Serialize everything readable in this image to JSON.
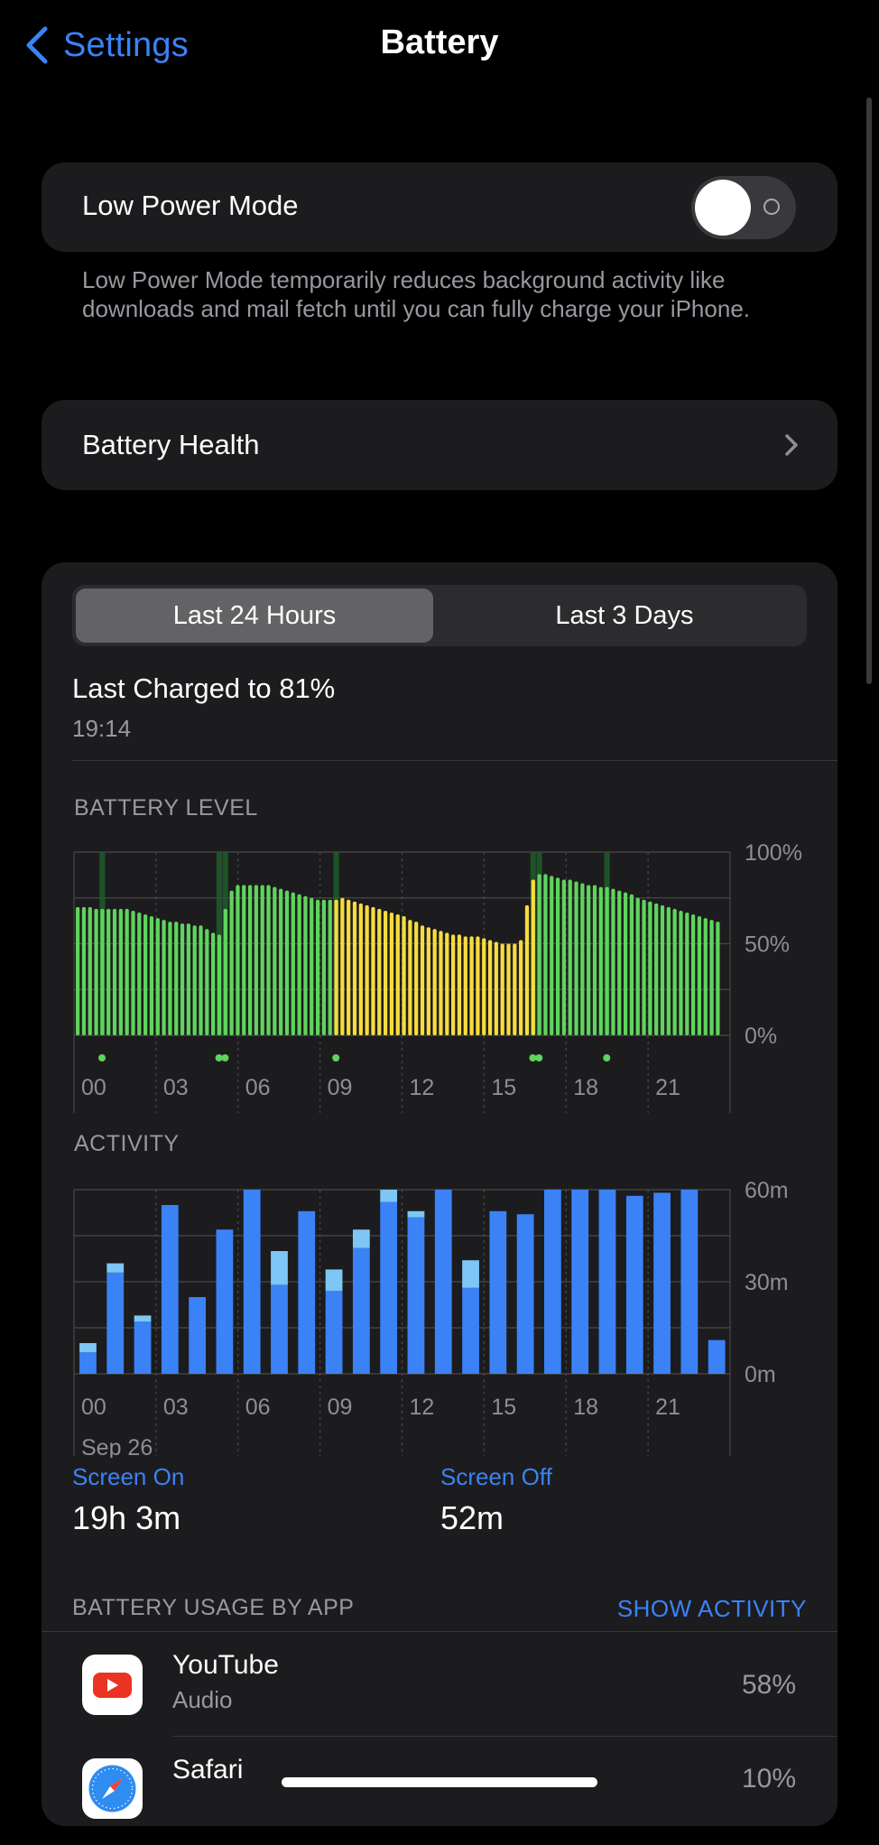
{
  "nav": {
    "back_label": "Settings",
    "title": "Battery"
  },
  "low_power": {
    "label": "Low Power Mode",
    "on": false,
    "footnote": "Low Power Mode temporarily reduces background activity like downloads and mail fetch until you can fully charge your iPhone."
  },
  "health": {
    "label": "Battery Health"
  },
  "segments": {
    "options": [
      "Last 24 Hours",
      "Last 3 Days"
    ],
    "selected": 0
  },
  "last_charged": {
    "title": "Last Charged to 81%",
    "time": "19:14"
  },
  "battery_level": {
    "header": "BATTERY LEVEL"
  },
  "activity": {
    "header": "ACTIVITY",
    "date": "Sep 26"
  },
  "colors": {
    "green": "#5fd45c",
    "yellow": "#f7dc3e",
    "blue": "#3b82f6",
    "lightblue": "#7dc6f5",
    "accent": "#3b82f6"
  },
  "chart_data": [
    {
      "type": "bar",
      "title": "BATTERY LEVEL",
      "y_tick_labels": [
        "100%",
        "50%",
        "0%"
      ],
      "x_tick_labels": [
        "00",
        "03",
        "06",
        "09",
        "12",
        "15",
        "18",
        "21"
      ],
      "ylim": [
        0,
        100
      ],
      "values": [
        70,
        70,
        70,
        69,
        69,
        69,
        69,
        69,
        69,
        68,
        67,
        66,
        65,
        64,
        63,
        62,
        62,
        61,
        61,
        60,
        60,
        58,
        56,
        55,
        69,
        79,
        82,
        82,
        82,
        82,
        82,
        82,
        81,
        80,
        79,
        78,
        77,
        76,
        75,
        74,
        74,
        74,
        74,
        75,
        74,
        73,
        72,
        71,
        70,
        69,
        68,
        67,
        66,
        65,
        63,
        62,
        60,
        59,
        58,
        57,
        56,
        55,
        55,
        54,
        54,
        54,
        53,
        52,
        51,
        50,
        50,
        50,
        52,
        71,
        85,
        88,
        88,
        87,
        86,
        85,
        85,
        84,
        83,
        82,
        82,
        81,
        81,
        80,
        79,
        78,
        77,
        75,
        74,
        73,
        72,
        71,
        70,
        69,
        68,
        67,
        66,
        65,
        64,
        63,
        62
      ],
      "bar_colors": {
        "green": [
          [
            0,
            41
          ],
          [
            75,
            104
          ]
        ],
        "yellow": [
          [
            42,
            74
          ]
        ]
      },
      "charging_markers": [
        4,
        23,
        24,
        42,
        74,
        75,
        86
      ]
    },
    {
      "type": "bar",
      "title": "ACTIVITY",
      "y_tick_labels": [
        "60m",
        "30m",
        "0m"
      ],
      "x_tick_labels": [
        "00",
        "03",
        "06",
        "09",
        "12",
        "15",
        "18",
        "21"
      ],
      "ylim": [
        0,
        60
      ],
      "series": [
        {
          "name": "Screen On",
          "values": [
            7,
            33,
            17,
            55,
            25,
            47,
            60,
            29,
            53,
            27,
            41,
            56,
            51,
            60,
            28,
            53,
            52,
            60,
            60,
            60,
            58,
            59,
            60,
            11
          ]
        },
        {
          "name": "Screen Off",
          "values": [
            3,
            3,
            2,
            0,
            0,
            0,
            0,
            11,
            0,
            7,
            6,
            4,
            2,
            0,
            9,
            0,
            0,
            0,
            0,
            0,
            0,
            0,
            0,
            0
          ]
        }
      ]
    }
  ],
  "stats": [
    {
      "label": "Screen On",
      "value": "19h 3m"
    },
    {
      "label": "Screen Off",
      "value": "52m"
    }
  ],
  "usage": {
    "header": "BATTERY USAGE BY APP",
    "show_label": "SHOW ACTIVITY",
    "apps": [
      {
        "name": "YouTube",
        "sub": "Audio",
        "pct": "58%",
        "icon": "youtube-icon"
      },
      {
        "name": "Safari",
        "sub": "",
        "pct": "10%",
        "icon": "safari-icon"
      }
    ]
  }
}
